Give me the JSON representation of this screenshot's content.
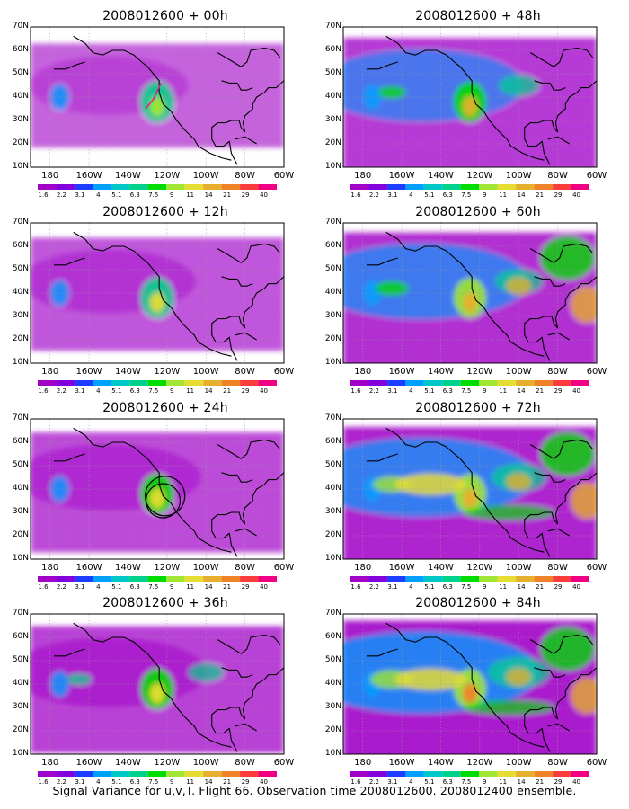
{
  "figure": {
    "caption": "Signal Variance for u,v,T. Flight 66. Observation time 2008012600. 2008012400 ensemble."
  },
  "axes": {
    "lat_ticks": [
      "70N",
      "60N",
      "50N",
      "40N",
      "30N",
      "20N",
      "10N"
    ],
    "lat_values": [
      70,
      60,
      50,
      40,
      30,
      20,
      10
    ],
    "lon_ticks": [
      "180",
      "160W",
      "140W",
      "120W",
      "100W",
      "80W",
      "60W"
    ],
    "lon_values": [
      -180,
      -160,
      -140,
      -120,
      -100,
      -80,
      -60
    ],
    "lon_range": [
      -190,
      -60
    ],
    "lat_range": [
      10,
      70
    ]
  },
  "colorbar": {
    "labels": [
      "1.6",
      "2.2",
      "3.1",
      "4",
      "5.1",
      "6.3",
      "7.5",
      "9",
      "11",
      "14",
      "21",
      "29",
      "40"
    ],
    "levels": [
      1.6,
      2.2,
      3.1,
      4,
      5.1,
      6.3,
      7.5,
      9,
      11,
      14,
      21,
      29,
      40
    ],
    "colors": [
      "#a000c8",
      "#8200dc",
      "#1e3cff",
      "#00a0ff",
      "#00c8c8",
      "#00d28c",
      "#00dc00",
      "#a0e632",
      "#e6dc32",
      "#e6af2d",
      "#f08228",
      "#fa3c3c",
      "#f00082"
    ]
  },
  "panels": [
    {
      "id": "00h",
      "title": "2008012600 + 00h",
      "col": 0,
      "row": 0,
      "intensity": 0.15
    },
    {
      "id": "12h",
      "title": "2008012600 + 12h",
      "col": 0,
      "row": 1,
      "intensity": 0.28
    },
    {
      "id": "24h",
      "title": "2008012600 + 24h",
      "col": 0,
      "row": 2,
      "intensity": 0.38
    },
    {
      "id": "36h",
      "title": "2008012600 + 36h",
      "col": 0,
      "row": 3,
      "intensity": 0.48
    },
    {
      "id": "48h",
      "title": "2008012600 + 48h",
      "col": 1,
      "row": 0,
      "intensity": 0.56
    },
    {
      "id": "60h",
      "title": "2008012600 + 60h",
      "col": 1,
      "row": 1,
      "intensity": 0.66
    },
    {
      "id": "72h",
      "title": "2008012600 + 72h",
      "col": 1,
      "row": 2,
      "intensity": 0.76
    },
    {
      "id": "84h",
      "title": "2008012600 + 84h",
      "col": 1,
      "row": 3,
      "intensity": 0.86
    }
  ]
}
